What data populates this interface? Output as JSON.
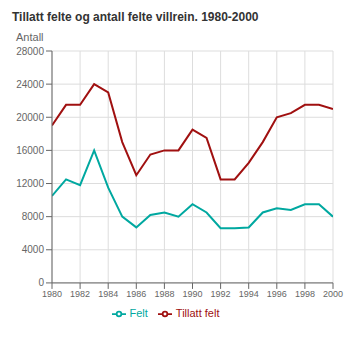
{
  "chart_data": {
    "type": "line",
    "title": "Tillatt felte og antall felte villrein. 1980-2000",
    "y_label": "Antall",
    "x": [
      1980,
      1981,
      1982,
      1983,
      1984,
      1985,
      1986,
      1987,
      1988,
      1989,
      1990,
      1991,
      1992,
      1993,
      1994,
      1995,
      1996,
      1997,
      1998,
      1999,
      2000
    ],
    "series": [
      {
        "name": "Tillatt felt",
        "color": "#a01010",
        "values": [
          19000,
          21500,
          21500,
          24000,
          23000,
          17000,
          13000,
          15500,
          16000,
          16000,
          18500,
          17500,
          12500,
          12500,
          14500,
          17000,
          20000,
          20500,
          21500,
          21500,
          21000
        ]
      },
      {
        "name": "Felt",
        "color": "#00a8a0",
        "values": [
          10500,
          12500,
          11800,
          16000,
          11500,
          8000,
          6700,
          8200,
          8500,
          8000,
          9500,
          8500,
          6600,
          6600,
          6700,
          8500,
          9000,
          8800,
          9500,
          9500,
          8000
        ]
      }
    ],
    "xlim": [
      1980,
      2000
    ],
    "xticks": [
      1980,
      1982,
      1984,
      1986,
      1988,
      1990,
      1992,
      1994,
      1996,
      1998,
      2000
    ],
    "ylim": [
      0,
      28000
    ],
    "yticks": [
      0,
      4000,
      8000,
      12000,
      16000,
      20000,
      24000,
      28000
    ],
    "grid": true,
    "legend": "bottom"
  }
}
